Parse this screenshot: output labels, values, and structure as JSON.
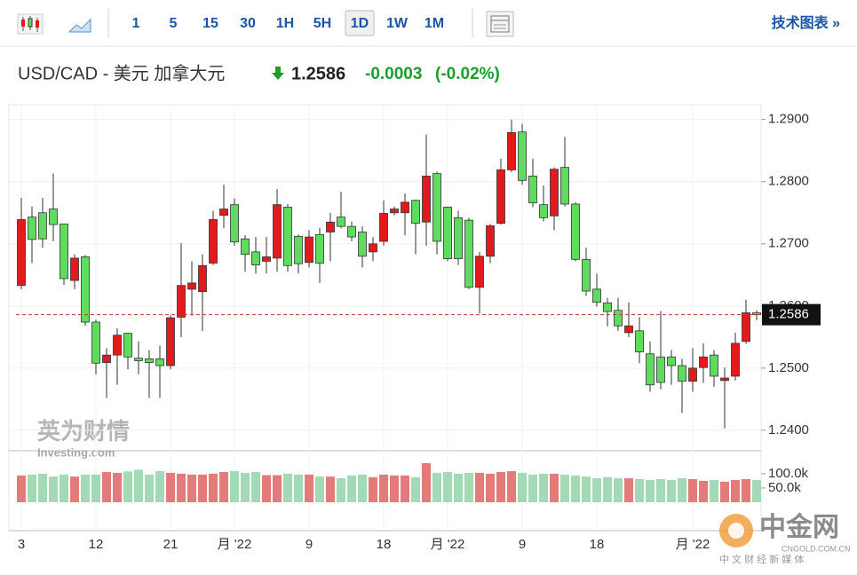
{
  "toolbar": {
    "intervals": [
      "1",
      "5",
      "15",
      "30",
      "1H",
      "5H",
      "1D",
      "1W",
      "1M"
    ],
    "selected": "1D",
    "link": "技术图表 »"
  },
  "header": {
    "symbol": "USD/CAD - 美元 加拿大元",
    "change": "-0.0003",
    "change_pct": "(-0.02%)"
  },
  "watermarks": {
    "left_main": "英为财情",
    "left_sub": "Investing.com",
    "right_main": "中金网",
    "right_sub": "CNGOLD.COM.CN",
    "right_tagline": "中 文 财 经 新 媒 体"
  },
  "chart_data": {
    "type": "candlestick",
    "categories": [
      "3",
      null,
      null,
      null,
      null,
      null,
      null,
      "12",
      null,
      null,
      null,
      null,
      null,
      null,
      "21",
      null,
      null,
      null,
      null,
      null,
      "月 '22",
      null,
      null,
      null,
      null,
      null,
      null,
      "9",
      null,
      null,
      null,
      null,
      null,
      null,
      "18",
      null,
      null,
      null,
      null,
      null,
      "月 '22",
      null,
      null,
      null,
      null,
      null,
      null,
      "9",
      null,
      null,
      null,
      null,
      null,
      null,
      "18",
      null,
      null,
      null,
      null,
      null,
      null,
      null,
      null,
      "月 '22",
      null,
      null,
      null,
      null,
      null,
      null
    ],
    "open": [
      1.2633,
      1.2743,
      1.275,
      1.2756,
      1.2732,
      1.2641,
      1.2679,
      1.2574,
      1.2509,
      1.2521,
      1.2556,
      1.2516,
      1.2515,
      1.2515,
      1.2504,
      1.2582,
      1.2627,
      1.2623,
      1.2669,
      1.2746,
      1.2763,
      1.2708,
      1.2687,
      1.2672,
      1.2677,
      1.2759,
      1.2712,
      1.267,
      1.2715,
      1.2719,
      1.2743,
      1.2728,
      1.2719,
      1.2687,
      1.2704,
      1.275,
      1.275,
      1.277,
      1.2735,
      1.2813,
      1.2759,
      1.2742,
      1.2738,
      1.263,
      1.268,
      1.2733,
      1.2819,
      1.288,
      1.2809,
      1.2763,
      1.2745,
      1.2823,
      1.2764,
      1.2675,
      1.2627,
      1.2605,
      1.2593,
      1.2557,
      1.256,
      1.2523,
      1.2518,
      1.2518,
      1.2504,
      1.2479,
      1.2501,
      1.2521,
      1.248,
      1.2487,
      1.2543,
      1.2589
    ],
    "high": [
      1.2774,
      1.276,
      1.2774,
      1.2813,
      1.2732,
      1.2683,
      1.2682,
      1.2578,
      1.2532,
      1.2564,
      1.2557,
      1.2543,
      1.2529,
      1.2536,
      1.2585,
      1.2701,
      1.2672,
      1.2683,
      1.2753,
      1.2795,
      1.2773,
      1.2714,
      1.2711,
      1.2711,
      1.2788,
      1.2764,
      1.2715,
      1.2722,
      1.2726,
      1.275,
      1.2784,
      1.2736,
      1.2728,
      1.2711,
      1.277,
      1.276,
      1.2781,
      1.2771,
      1.2876,
      1.2816,
      1.276,
      1.2753,
      1.2742,
      1.2687,
      1.2732,
      1.2837,
      1.29,
      1.2893,
      1.2837,
      1.2794,
      1.2823,
      1.2872,
      1.2767,
      1.2694,
      1.2652,
      1.2613,
      1.2613,
      1.2606,
      1.2582,
      1.2543,
      1.2592,
      1.2529,
      1.2515,
      1.2532,
      1.254,
      1.2529,
      1.2501,
      1.2557,
      1.261,
      1.2593
    ],
    "low": [
      1.2627,
      1.2669,
      1.2694,
      1.2704,
      1.2634,
      1.2627,
      1.2568,
      1.249,
      1.2452,
      1.2473,
      1.2498,
      1.249,
      1.2452,
      1.2452,
      1.2498,
      1.255,
      1.2585,
      1.256,
      1.2666,
      1.2725,
      1.2697,
      1.2655,
      1.2652,
      1.2652,
      1.2655,
      1.2655,
      1.2652,
      1.2662,
      1.2637,
      1.2672,
      1.2725,
      1.2704,
      1.2662,
      1.2672,
      1.2697,
      1.2746,
      1.2714,
      1.2683,
      1.2697,
      1.2683,
      1.2672,
      1.2666,
      1.2627,
      1.2588,
      1.2669,
      1.2731,
      1.2815,
      1.2795,
      1.2759,
      1.2736,
      1.2722,
      1.276,
      1.2672,
      1.2616,
      1.2599,
      1.2567,
      1.256,
      1.255,
      1.2508,
      1.2462,
      1.2466,
      1.2473,
      1.2428,
      1.2462,
      1.2476,
      1.247,
      1.2403,
      1.248,
      1.2539,
      1.2577
    ],
    "close": [
      1.2739,
      1.2707,
      1.2708,
      1.2731,
      1.2644,
      1.2677,
      1.2574,
      1.2508,
      1.2521,
      1.2553,
      1.2518,
      1.2512,
      1.2509,
      1.2504,
      1.2581,
      1.2633,
      1.2637,
      1.2665,
      1.2739,
      1.2756,
      1.2703,
      1.2683,
      1.2666,
      1.2679,
      1.2763,
      1.2665,
      1.2668,
      1.2711,
      1.2669,
      1.2735,
      1.2728,
      1.2711,
      1.268,
      1.27,
      1.2749,
      1.2756,
      1.2767,
      1.2733,
      1.2809,
      1.2704,
      1.2676,
      1.2676,
      1.263,
      1.268,
      1.2729,
      1.2819,
      1.2879,
      1.2802,
      1.2766,
      1.2742,
      1.282,
      1.2764,
      1.2675,
      1.2624,
      1.2606,
      1.2591,
      1.2568,
      1.2568,
      1.2526,
      1.2473,
      1.2477,
      1.2504,
      1.2479,
      1.25,
      1.2518,
      1.2487,
      1.2484,
      1.254,
      1.2589,
      1.2586
    ],
    "volume": [
      94000,
      97000,
      100000,
      90000,
      97000,
      90000,
      97000,
      97000,
      106000,
      103000,
      108000,
      114000,
      97000,
      109000,
      103000,
      100000,
      97000,
      97000,
      100000,
      106000,
      109000,
      103000,
      106000,
      95000,
      95000,
      100000,
      97000,
      97000,
      90000,
      90000,
      84000,
      94000,
      97000,
      88000,
      97000,
      94000,
      94000,
      88000,
      137000,
      103000,
      106000,
      100000,
      103000,
      103000,
      100000,
      106000,
      109000,
      103000,
      97000,
      100000,
      100000,
      97000,
      94000,
      90000,
      84000,
      88000,
      84000,
      84000,
      81000,
      78000,
      81000,
      78000,
      84000,
      81000,
      75000,
      78000,
      72000,
      78000,
      81000,
      78000
    ],
    "up_color": "#e31a1c",
    "down_color": "#5fdc5f",
    "up_volume_color": "#e37b7b",
    "down_volume_color": "#a3d9b5",
    "ylim": [
      1.2367,
      1.2921
    ],
    "yticks": [
      {
        "value": 1.24,
        "label": "1.2400"
      },
      {
        "value": 1.25,
        "label": "1.2500"
      },
      {
        "value": 1.26,
        "label": "1.2600"
      },
      {
        "value": 1.27,
        "label": "1.2700"
      },
      {
        "value": 1.28,
        "label": "1.2800"
      },
      {
        "value": 1.29,
        "label": "1.2900"
      }
    ],
    "volume_ylim": [
      0,
      140000
    ],
    "volume_ticks": [
      {
        "value": 50000,
        "label": "50.0k"
      },
      {
        "value": 100000,
        "label": "100.0k"
      }
    ],
    "last_value": 1.2586,
    "grid": true
  }
}
